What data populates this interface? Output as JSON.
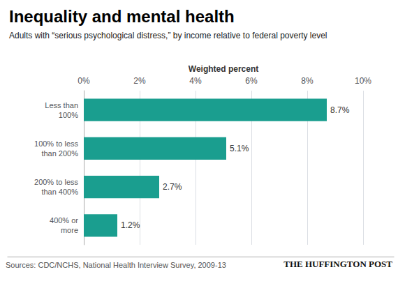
{
  "chart_data": {
    "type": "bar",
    "orientation": "horizontal",
    "title": "Inequality and mental health",
    "subtitle": "Adults with “serious psychological distress,” by income relative to federal poverty level",
    "xlabel": "Weighted percent",
    "categories": [
      "Less than\n100%",
      "100% to less\nthan 200%",
      "200% to less\nthan 400%",
      "400% or\nmore"
    ],
    "values": [
      8.7,
      5.1,
      2.7,
      1.2
    ],
    "value_labels": [
      "8.7%",
      "5.1%",
      "2.7%",
      "1.2%"
    ],
    "data_labels": true,
    "color": "#1a9e8f",
    "xlim": [
      0,
      10
    ],
    "xticks": [
      {
        "value": 0,
        "label": "0%"
      },
      {
        "value": 2,
        "label": "2%"
      },
      {
        "value": 4,
        "label": "4%"
      },
      {
        "value": 6,
        "label": "6%"
      },
      {
        "value": 8,
        "label": "8%"
      },
      {
        "value": 10,
        "label": "10%"
      }
    ],
    "grid": true,
    "annotations": [
      "Sources: CDC/NCHS, National Health Interview Survey, 2009-13",
      "THE HUFFINGTON POST"
    ]
  }
}
